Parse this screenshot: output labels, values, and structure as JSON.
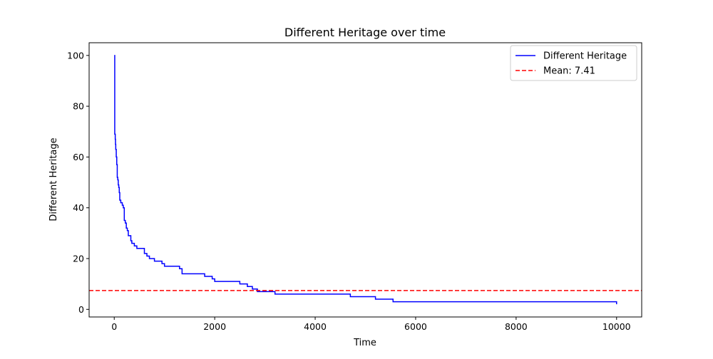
{
  "chart_data": {
    "type": "line",
    "title": "Different Heritage over time",
    "xlabel": "Time",
    "ylabel": "Different Heritage",
    "xlim": [
      -500,
      10500
    ],
    "ylim": [
      -3,
      105
    ],
    "x_ticks": [
      0,
      2000,
      4000,
      6000,
      8000,
      10000
    ],
    "y_ticks": [
      0,
      20,
      40,
      60,
      80,
      100
    ],
    "x_tick_labels": [
      "0",
      "2000",
      "4000",
      "6000",
      "8000",
      "10000"
    ],
    "y_tick_labels": [
      "0",
      "20",
      "40",
      "60",
      "80",
      "100"
    ],
    "grid": false,
    "legend_position": "top-right",
    "series": [
      {
        "name": "Different Heritage",
        "color": "#0000ff",
        "step": true,
        "x": [
          0,
          10,
          20,
          25,
          30,
          40,
          50,
          60,
          70,
          80,
          90,
          100,
          110,
          130,
          150,
          160,
          180,
          200,
          220,
          240,
          260,
          280,
          300,
          330,
          350,
          380,
          400,
          450,
          500,
          600,
          650,
          700,
          800,
          950,
          1000,
          1300,
          1350,
          1800,
          1950,
          2000,
          2500,
          2650,
          2750,
          2850,
          3200,
          4700,
          5200,
          5550,
          10000
        ],
        "y": [
          100,
          69,
          67,
          65,
          63,
          60,
          57,
          52,
          51,
          49,
          48,
          46,
          43,
          42,
          42,
          41,
          40,
          35,
          34,
          32,
          31,
          29,
          29,
          27,
          26,
          26,
          25,
          24,
          24,
          22,
          21,
          20,
          19,
          18,
          17,
          16,
          14,
          13,
          12,
          11,
          10,
          9,
          8,
          7,
          6,
          5,
          4,
          3,
          2
        ]
      }
    ],
    "reference_lines": [
      {
        "name": "Mean: 7.41",
        "value": 7.41,
        "orientation": "horizontal",
        "color": "#ff0000",
        "style": "dashed"
      }
    ]
  }
}
